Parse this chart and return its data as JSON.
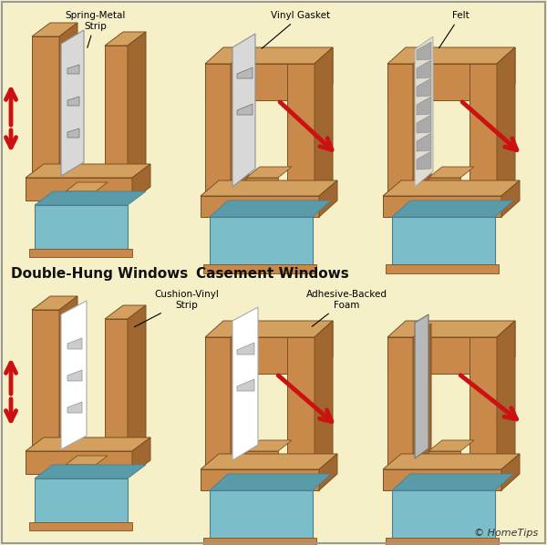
{
  "background_color": "#F5F0C8",
  "border_color": "#999999",
  "wood_face": "#C8894A",
  "wood_top": "#D4A060",
  "wood_side": "#A06830",
  "wood_dark_edge": "#7A5020",
  "glass_color": "#7BBDC8",
  "glass_dark": "#5A9BAA",
  "glass_edge": "#4A8090",
  "strip_light": "#D8D8D8",
  "strip_mid": "#B8B8B8",
  "strip_dark": "#909090",
  "red_arrow": "#CC1111",
  "red_arrow_dark": "#AA0000",
  "label_color": "#111111",
  "copyright": "© HomeTips",
  "top_labels": [
    "Spring-Metal\nStrip",
    "Vinyl Gasket",
    "Felt"
  ],
  "bottom_labels_left": [
    "Cushion-Vinyl\nStrip"
  ],
  "bottom_labels_right": [
    "Adhesive-Backed\nFoam"
  ],
  "section_left": "Double-Hung Windows",
  "section_right": "Casement Windows"
}
